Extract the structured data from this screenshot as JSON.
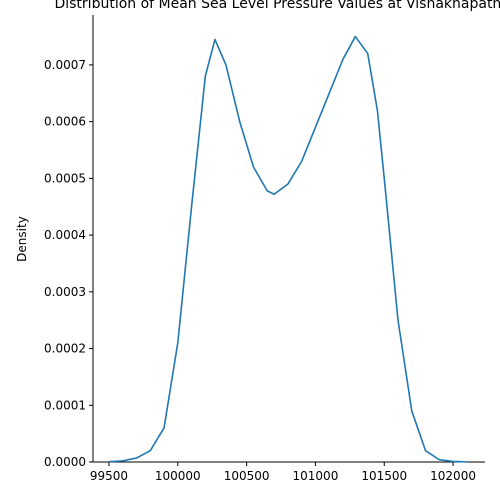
{
  "chart_data": {
    "type": "line",
    "title": "Distribution of Mean Sea Level Pressure Values at Vishakhapatnam",
    "ylabel": "Density",
    "x": [
      99500,
      99600,
      99700,
      99800,
      99900,
      100000,
      100100,
      100200,
      100270,
      100350,
      100450,
      100550,
      100650,
      100700,
      100800,
      100900,
      101000,
      101100,
      101200,
      101290,
      101380,
      101450,
      101500,
      101600,
      101700,
      101800,
      101900,
      102000,
      102100
    ],
    "series": [
      {
        "name": "density",
        "color": "#1f77b4",
        "values": [
          5e-07,
          2e-06,
          7e-06,
          2e-05,
          6e-05,
          0.00021,
          0.00045,
          0.00068,
          0.000745,
          0.0007,
          0.0006,
          0.00052,
          0.000478,
          0.000472,
          0.00049,
          0.00053,
          0.00059,
          0.00065,
          0.00071,
          0.00075,
          0.00072,
          0.00062,
          0.0005,
          0.00025,
          9e-05,
          2e-05,
          4e-06,
          1e-06,
          2e-07
        ]
      }
    ],
    "xlim": [
      99384,
      102232
    ],
    "ylim": [
      0,
      0.000788
    ],
    "xticks": [
      99500,
      100000,
      100500,
      101000,
      101500,
      102000
    ],
    "yticks": [
      {
        "value": 0,
        "label": "0.0000"
      },
      {
        "value": 0.0001,
        "label": "0.0001"
      },
      {
        "value": 0.0002,
        "label": "0.0002"
      },
      {
        "value": 0.0003,
        "label": "0.0003"
      },
      {
        "value": 0.0004,
        "label": "0.0004"
      },
      {
        "value": 0.0005,
        "label": "0.0005"
      },
      {
        "value": 0.0006,
        "label": "0.0006"
      },
      {
        "value": 0.0007,
        "label": "0.0007"
      }
    ],
    "grid": false
  }
}
